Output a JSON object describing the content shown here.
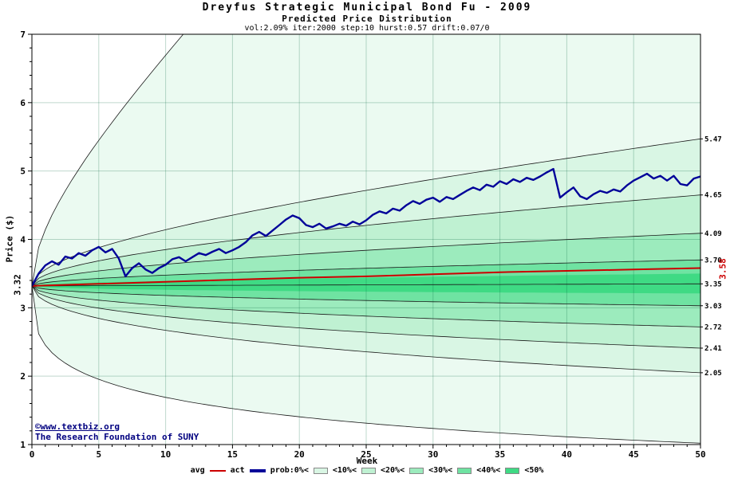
{
  "title": "Dreyfus Strategic Municipal Bond Fu - 2009",
  "subtitle": "Predicted Price Distribution",
  "params": "vol:2.09% iter:2000 step:10 hurst:0.57 drift:0.07/0",
  "watermark": {
    "line1": "©www.textbiz.org",
    "line2": "The Research Foundation of SUNY"
  },
  "start_label": "3.32",
  "avg_end_label": "3.58",
  "right_labels": [
    "5.47",
    "4.65",
    "4.09",
    "3.70",
    "3.35",
    "3.03",
    "2.72",
    "2.41",
    "2.05"
  ],
  "axes": {
    "x_label": "Week",
    "y_label": "Price ($)",
    "x_ticks": [
      0,
      5,
      10,
      15,
      20,
      25,
      30,
      35,
      40,
      45,
      50
    ],
    "y_ticks": [
      1,
      2,
      3,
      4,
      5,
      6,
      7
    ]
  },
  "legend": {
    "avg_label": "avg",
    "act_label": "act",
    "prob_label": "prob:0%<",
    "thresholds": [
      "<10%<",
      "<20%<",
      "<30%<",
      "<40%<",
      "<50%"
    ]
  },
  "colors": {
    "avg": "#cc0000",
    "act": "#000099",
    "edge": "#1a1a1a",
    "grid": "rgba(0,100,60,0.25)",
    "watermark": "#000080"
  },
  "chart_data": {
    "type": "area",
    "title": "Dreyfus Strategic Municipal Bond Fu - 2009 — Predicted Price Distribution",
    "xlabel": "Week",
    "ylabel": "Price ($)",
    "x_range": [
      0,
      50
    ],
    "y_range": [
      1,
      7
    ],
    "start": 3.32,
    "median_end": 3.35,
    "avg_end": 3.58,
    "bands": [
      {
        "label": "0%<",
        "upper": 16.0,
        "lower": 1.02,
        "p_up": 0.5,
        "p_dn": 0.35,
        "color": "#ebfaf1",
        "stroke": true
      },
      {
        "label": "<10%",
        "upper": 5.47,
        "lower": 2.05,
        "p_up": 0.5,
        "p_dn": 0.5,
        "color": "#d9f6e4",
        "stroke": true
      },
      {
        "label": "<20%",
        "upper": 4.65,
        "lower": 2.41,
        "p_up": 0.5,
        "p_dn": 0.5,
        "color": "#bff1d2",
        "stroke": true
      },
      {
        "label": "<30%",
        "upper": 4.09,
        "lower": 2.72,
        "p_up": 0.5,
        "p_dn": 0.5,
        "color": "#9cebbd",
        "stroke": true
      },
      {
        "label": "<40%",
        "upper": 3.7,
        "lower": 3.03,
        "p_up": 0.5,
        "p_dn": 0.5,
        "color": "#6fe3a2",
        "stroke": true
      },
      {
        "label": "<50%",
        "upper": 3.5,
        "lower": 3.21,
        "p_up": 0.5,
        "p_dn": 0.5,
        "color": "#3fda84",
        "stroke": false
      }
    ],
    "avg_series": [
      [
        0,
        3.32
      ],
      [
        5,
        3.35
      ],
      [
        10,
        3.38
      ],
      [
        15,
        3.41
      ],
      [
        20,
        3.44
      ],
      [
        25,
        3.46
      ],
      [
        30,
        3.49
      ],
      [
        35,
        3.52
      ],
      [
        40,
        3.54
      ],
      [
        45,
        3.56
      ],
      [
        50,
        3.58
      ]
    ],
    "act_series": [
      [
        0,
        3.32
      ],
      [
        0.5,
        3.5
      ],
      [
        1,
        3.62
      ],
      [
        1.5,
        3.68
      ],
      [
        2,
        3.63
      ],
      [
        2.5,
        3.75
      ],
      [
        3,
        3.72
      ],
      [
        3.5,
        3.8
      ],
      [
        4,
        3.76
      ],
      [
        4.5,
        3.84
      ],
      [
        5,
        3.89
      ],
      [
        5.5,
        3.81
      ],
      [
        6,
        3.86
      ],
      [
        6.5,
        3.72
      ],
      [
        7,
        3.46
      ],
      [
        7.5,
        3.58
      ],
      [
        8,
        3.65
      ],
      [
        8.5,
        3.56
      ],
      [
        9,
        3.51
      ],
      [
        9.5,
        3.58
      ],
      [
        10,
        3.63
      ],
      [
        10.5,
        3.71
      ],
      [
        11,
        3.74
      ],
      [
        11.5,
        3.68
      ],
      [
        12,
        3.74
      ],
      [
        12.5,
        3.8
      ],
      [
        13,
        3.77
      ],
      [
        13.5,
        3.82
      ],
      [
        14,
        3.86
      ],
      [
        14.5,
        3.8
      ],
      [
        15,
        3.84
      ],
      [
        15.5,
        3.89
      ],
      [
        16,
        3.96
      ],
      [
        16.5,
        4.06
      ],
      [
        17,
        4.11
      ],
      [
        17.5,
        4.05
      ],
      [
        18,
        4.13
      ],
      [
        18.5,
        4.21
      ],
      [
        19,
        4.29
      ],
      [
        19.5,
        4.35
      ],
      [
        20,
        4.31
      ],
      [
        20.5,
        4.21
      ],
      [
        21,
        4.18
      ],
      [
        21.5,
        4.23
      ],
      [
        22,
        4.16
      ],
      [
        22.5,
        4.19
      ],
      [
        23,
        4.23
      ],
      [
        23.5,
        4.2
      ],
      [
        24,
        4.26
      ],
      [
        24.5,
        4.22
      ],
      [
        25,
        4.28
      ],
      [
        25.5,
        4.36
      ],
      [
        26,
        4.41
      ],
      [
        26.5,
        4.38
      ],
      [
        27,
        4.45
      ],
      [
        27.5,
        4.42
      ],
      [
        28,
        4.5
      ],
      [
        28.5,
        4.56
      ],
      [
        29,
        4.52
      ],
      [
        29.5,
        4.58
      ],
      [
        30,
        4.61
      ],
      [
        30.5,
        4.55
      ],
      [
        31,
        4.62
      ],
      [
        31.5,
        4.59
      ],
      [
        32,
        4.65
      ],
      [
        32.5,
        4.71
      ],
      [
        33,
        4.76
      ],
      [
        33.5,
        4.72
      ],
      [
        34,
        4.8
      ],
      [
        34.5,
        4.77
      ],
      [
        35,
        4.85
      ],
      [
        35.5,
        4.81
      ],
      [
        36,
        4.88
      ],
      [
        36.5,
        4.84
      ],
      [
        37,
        4.9
      ],
      [
        37.5,
        4.87
      ],
      [
        38,
        4.92
      ],
      [
        38.5,
        4.98
      ],
      [
        39,
        5.03
      ],
      [
        39.5,
        4.61
      ],
      [
        40,
        4.69
      ],
      [
        40.5,
        4.76
      ],
      [
        41,
        4.63
      ],
      [
        41.5,
        4.59
      ],
      [
        42,
        4.66
      ],
      [
        42.5,
        4.71
      ],
      [
        43,
        4.68
      ],
      [
        43.5,
        4.73
      ],
      [
        44,
        4.7
      ],
      [
        44.5,
        4.79
      ],
      [
        45,
        4.86
      ],
      [
        45.5,
        4.91
      ],
      [
        46,
        4.96
      ],
      [
        46.5,
        4.89
      ],
      [
        47,
        4.93
      ],
      [
        47.5,
        4.86
      ],
      [
        48,
        4.93
      ],
      [
        48.5,
        4.81
      ],
      [
        49,
        4.79
      ],
      [
        49.5,
        4.89
      ],
      [
        50,
        4.92
      ]
    ]
  }
}
